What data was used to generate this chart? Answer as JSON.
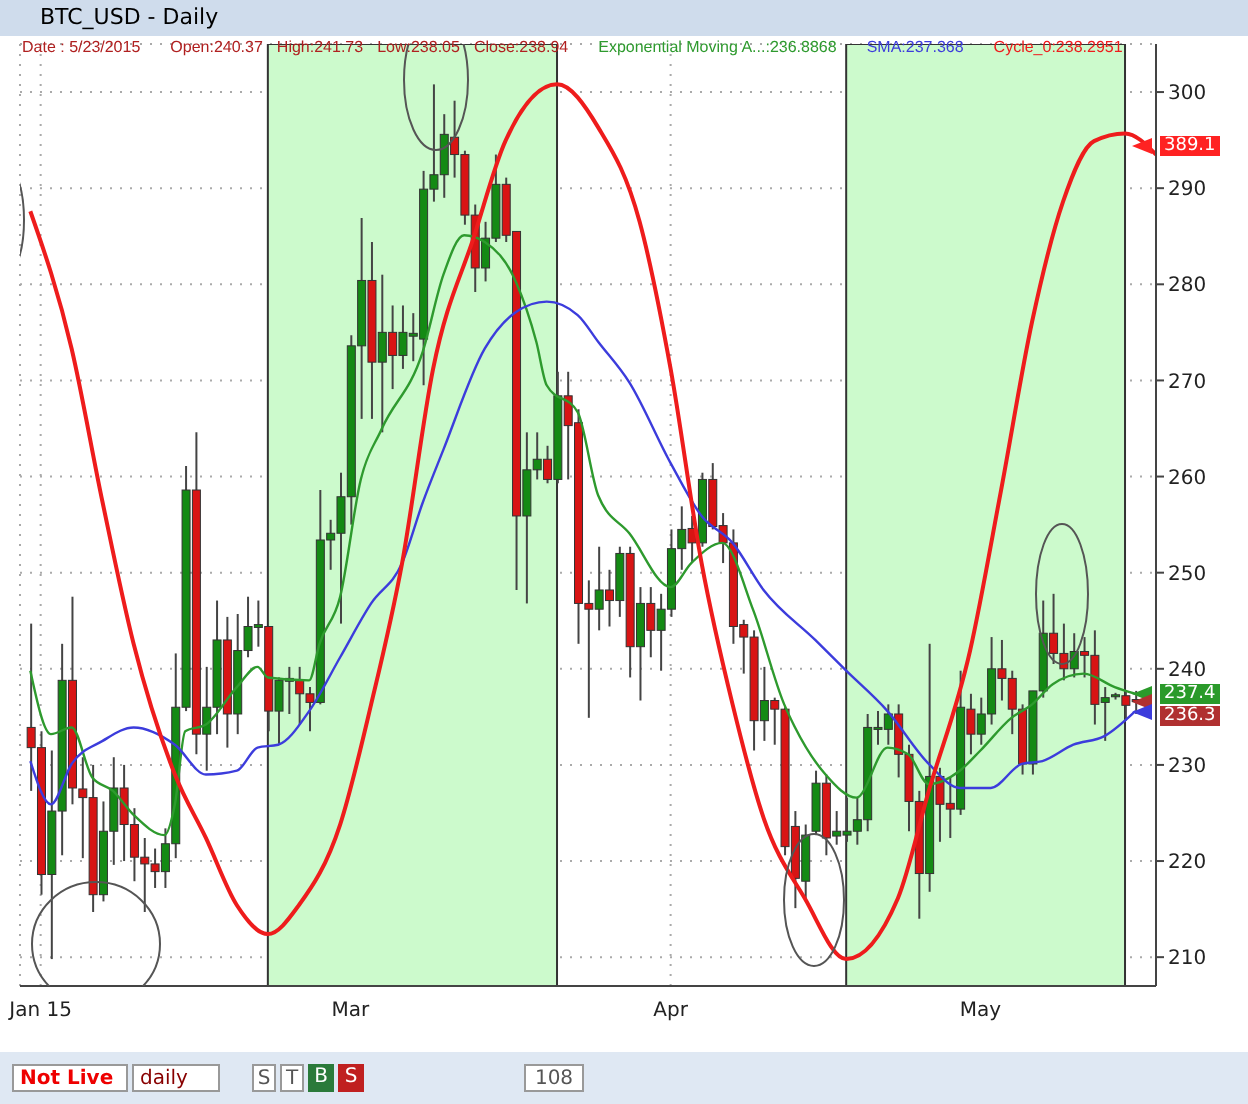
{
  "chart_data": {
    "type": "candlestick",
    "title": "BTC_USD - Daily",
    "annotations": [
      "Date : 5/23/2015",
      "Open:240.37",
      "High:241.73",
      "Low:238.05",
      "Close:238.94",
      "Not Live",
      "daily",
      "S",
      "T",
      "B",
      "S",
      "108",
      {
        "text": "389.1",
        "y": 294.4
      },
      {
        "text": "237.4",
        "y": 237.4
      },
      "236.3"
    ],
    "x": [
      "2015-01-29",
      "2015-01-30",
      "2015-01-31",
      "2015-02-01",
      "2015-02-02",
      "2015-02-03",
      "2015-02-04",
      "2015-02-05",
      "2015-02-06",
      "2015-02-07",
      "2015-02-08",
      "2015-02-09",
      "2015-02-10",
      "2015-02-11",
      "2015-02-12",
      "2015-02-13",
      "2015-02-14",
      "2015-02-15",
      "2015-02-16",
      "2015-02-17",
      "2015-02-18",
      "2015-02-19",
      "2015-02-20",
      "2015-02-21",
      "2015-02-22",
      "2015-02-23",
      "2015-02-24",
      "2015-02-25",
      "2015-02-26",
      "2015-02-27",
      "2015-02-28",
      "2015-03-01",
      "2015-03-02",
      "2015-03-03",
      "2015-03-04",
      "2015-03-05",
      "2015-03-06",
      "2015-03-07",
      "2015-03-08",
      "2015-03-09",
      "2015-03-10",
      "2015-03-11",
      "2015-03-12",
      "2015-03-13",
      "2015-03-14",
      "2015-03-15",
      "2015-03-16",
      "2015-03-17",
      "2015-03-18",
      "2015-03-19",
      "2015-03-20",
      "2015-03-21",
      "2015-03-22",
      "2015-03-23",
      "2015-03-24",
      "2015-03-25",
      "2015-03-26",
      "2015-03-27",
      "2015-03-28",
      "2015-03-29",
      "2015-03-30",
      "2015-03-31",
      "2015-04-01",
      "2015-04-02",
      "2015-04-03",
      "2015-04-04",
      "2015-04-05",
      "2015-04-06",
      "2015-04-07",
      "2015-04-08",
      "2015-04-09",
      "2015-04-10",
      "2015-04-11",
      "2015-04-12",
      "2015-04-13",
      "2015-04-14",
      "2015-04-15",
      "2015-04-16",
      "2015-04-17",
      "2015-04-18",
      "2015-04-19",
      "2015-04-20",
      "2015-04-21",
      "2015-04-22",
      "2015-04-23",
      "2015-04-24",
      "2015-04-25",
      "2015-04-26",
      "2015-04-27",
      "2015-04-28",
      "2015-04-29",
      "2015-04-30",
      "2015-05-01",
      "2015-05-02",
      "2015-05-03",
      "2015-05-04",
      "2015-05-05",
      "2015-05-06",
      "2015-05-07",
      "2015-05-08",
      "2015-05-09",
      "2015-05-10",
      "2015-05-11",
      "2015-05-12",
      "2015-05-13",
      "2015-05-14",
      "2015-05-15",
      "2015-05-16"
    ],
    "ohlc": [
      [
        233.9,
        244.7,
        227.3,
        231.8
      ],
      [
        231.8,
        233.5,
        216.5,
        218.6
      ],
      [
        218.6,
        231.5,
        209.8,
        225.2
      ],
      [
        225.2,
        242.6,
        220.6,
        238.8
      ],
      [
        238.8,
        247.5,
        225.9,
        227.6
      ],
      [
        227.5,
        230.8,
        220.3,
        226.6
      ],
      [
        226.6,
        230,
        214.7,
        216.5
      ],
      [
        216.5,
        226.2,
        215.8,
        223.1
      ],
      [
        223.1,
        230.8,
        219.6,
        227.6
      ],
      [
        227.6,
        230,
        220,
        223.8
      ],
      [
        223.8,
        225.5,
        217.9,
        220.4
      ],
      [
        220.4,
        222.4,
        214.7,
        219.7
      ],
      [
        219.7,
        221.3,
        217.2,
        218.9
      ],
      [
        218.9,
        223.4,
        217.2,
        221.8
      ],
      [
        221.8,
        241.6,
        220.3,
        236
      ],
      [
        236,
        261.1,
        235.6,
        258.6
      ],
      [
        258.6,
        264.6,
        231.1,
        233.2
      ],
      [
        233.2,
        240.2,
        229.4,
        236
      ],
      [
        236,
        247.1,
        233.2,
        243
      ],
      [
        243,
        245.4,
        231.8,
        235.3
      ],
      [
        235.3,
        245.7,
        233.2,
        241.9
      ],
      [
        241.9,
        247.5,
        241.2,
        244.4
      ],
      [
        244.3,
        247.1,
        242.3,
        244.6
      ],
      [
        244.4,
        244.4,
        233.5,
        235.6
      ],
      [
        235.6,
        239.1,
        232.2,
        238.8
      ],
      [
        238.7,
        240.2,
        235.3,
        239
      ],
      [
        238.8,
        240.2,
        234.2,
        237.4
      ],
      [
        237.4,
        238.1,
        233.5,
        236.5
      ],
      [
        236.5,
        258.6,
        236.3,
        253.4
      ],
      [
        253.4,
        255.5,
        250.3,
        254.1
      ],
      [
        254.1,
        260.4,
        244.7,
        257.9
      ],
      [
        257.9,
        274.7,
        255,
        273.6
      ],
      [
        273.6,
        286.9,
        266,
        280.4
      ],
      [
        280.4,
        284.4,
        266,
        271.9
      ],
      [
        271.9,
        281,
        264.6,
        275
      ],
      [
        275,
        277.8,
        269.1,
        272.6
      ],
      [
        272.6,
        277.8,
        271.2,
        275
      ],
      [
        274.6,
        277,
        272,
        274.9
      ],
      [
        274.3,
        291.8,
        269.5,
        289.9
      ],
      [
        289.9,
        300.8,
        288.6,
        291.4
      ],
      [
        291.4,
        297.7,
        289,
        295.6
      ],
      [
        295.3,
        299.1,
        291.1,
        293.5
      ],
      [
        293.5,
        293.9,
        286.2,
        287.2
      ],
      [
        287.2,
        288.3,
        279.2,
        281.7
      ],
      [
        281.7,
        286.5,
        280.3,
        284.8
      ],
      [
        284.8,
        293.5,
        284.4,
        290.4
      ],
      [
        290.4,
        291.1,
        284.4,
        285.1
      ],
      [
        285.5,
        285.5,
        248.2,
        255.9
      ],
      [
        255.9,
        264.6,
        246.8,
        260.7
      ],
      [
        260.7,
        264.6,
        259.7,
        261.8
      ],
      [
        261.8,
        263.2,
        259.3,
        259.7
      ],
      [
        259.7,
        270.9,
        259.3,
        268.4
      ],
      [
        268.4,
        270.9,
        259.7,
        265.3
      ],
      [
        265.6,
        267,
        242.6,
        246.8
      ],
      [
        246.8,
        249.2,
        234.9,
        246.2
      ],
      [
        246.2,
        252.7,
        244,
        248.2
      ],
      [
        248.2,
        250.3,
        244.4,
        247.1
      ],
      [
        247.1,
        252.7,
        245.4,
        252
      ],
      [
        252,
        252.7,
        239.1,
        242.3
      ],
      [
        242.3,
        248.5,
        236.7,
        246.8
      ],
      [
        246.8,
        248.5,
        241.2,
        244
      ],
      [
        244,
        247.8,
        239.8,
        246.2
      ],
      [
        246.2,
        254.5,
        245.4,
        252.5
      ],
      [
        252.5,
        256.9,
        250.3,
        254.5
      ],
      [
        254.6,
        255.9,
        251,
        253.1
      ],
      [
        253.1,
        260.4,
        252.7,
        259.7
      ],
      [
        259.7,
        261.4,
        254.5,
        254.8
      ],
      [
        254.9,
        256.2,
        251,
        253.1
      ],
      [
        253.1,
        254.5,
        242.6,
        244.4
      ],
      [
        244.6,
        245.1,
        239.5,
        243.3
      ],
      [
        243.3,
        244,
        231.5,
        234.6
      ],
      [
        234.6,
        240.2,
        232.5,
        236.7
      ],
      [
        236.7,
        237,
        232.1,
        235.8
      ],
      [
        235.8,
        236,
        220.6,
        221.5
      ],
      [
        223.6,
        225.2,
        215.1,
        218.2
      ],
      [
        217.9,
        223.8,
        216.1,
        222.7
      ],
      [
        223.1,
        229.4,
        222.7,
        228.1
      ],
      [
        228.1,
        229,
        220.6,
        222.4
      ],
      [
        222.6,
        225.2,
        221.7,
        223.1
      ],
      [
        222.7,
        226.6,
        222,
        223.1
      ],
      [
        223.1,
        226.6,
        221.7,
        224.3
      ],
      [
        224.3,
        235.3,
        223.1,
        233.9
      ],
      [
        233.7,
        235.6,
        232.1,
        233.9
      ],
      [
        233.7,
        236.3,
        232.1,
        235.3
      ],
      [
        235.3,
        236.3,
        228.7,
        231.1
      ],
      [
        231.1,
        232.1,
        223.1,
        226.2
      ],
      [
        226.2,
        227.3,
        214,
        218.7
      ],
      [
        218.7,
        242.6,
        216.8,
        228.8
      ],
      [
        228.8,
        229.7,
        222,
        225.9
      ],
      [
        226,
        228.7,
        222.4,
        225.4
      ],
      [
        225.4,
        239.8,
        224.8,
        236
      ],
      [
        235.8,
        237.4,
        231.1,
        233.2
      ],
      [
        233.2,
        237,
        232.1,
        235.3
      ],
      [
        235.3,
        243.3,
        234.2,
        240
      ],
      [
        240,
        243,
        236.7,
        239
      ],
      [
        239,
        239.8,
        233.2,
        235.8
      ],
      [
        235.8,
        236.3,
        229,
        230.1
      ],
      [
        230.1,
        237.7,
        229,
        237.7
      ],
      [
        237.7,
        247.1,
        237,
        243.7
      ],
      [
        243.7,
        247.8,
        240.5,
        241.6
      ],
      [
        241.6,
        244.7,
        238.8,
        240
      ],
      [
        240,
        243.7,
        239.1,
        241.8
      ],
      [
        241.8,
        243.3,
        239.1,
        241.4
      ],
      [
        241.4,
        244,
        234.2,
        236.3
      ],
      [
        236.5,
        238.1,
        232.5,
        237
      ],
      [
        237.1,
        237.5,
        236.8,
        237.3
      ],
      [
        237.2,
        237.7,
        234.6,
        236.2
      ],
      [
        236.8,
        237.7,
        235.3,
        236.6
      ]
    ],
    "series": [
      {
        "type": "line",
        "name": "Exponential Moving A...:236.8868",
        "color": "#2e9a2e",
        "x": [
          "2015-01-29",
          "2015-01-31",
          "2015-02-02",
          "2015-02-04",
          "2015-02-06",
          "2015-02-08",
          "2015-02-11",
          "2015-02-12",
          "2015-02-13",
          "2015-02-15",
          "2015-02-18",
          "2015-02-20",
          "2015-02-21",
          "2015-02-25",
          "2015-02-26",
          "2015-02-28",
          "2015-03-02",
          "2015-03-04",
          "2015-03-08",
          "2015-03-10",
          "2015-03-12",
          "2015-03-14",
          "2015-03-17",
          "2015-03-19",
          "2015-03-20",
          "2015-03-23",
          "2015-03-25",
          "2015-03-28",
          "2015-04-01",
          "2015-04-03",
          "2015-04-06",
          "2015-04-09",
          "2015-04-12",
          "2015-04-13",
          "2015-04-16",
          "2015-04-19",
          "2015-04-22",
          "2015-04-24",
          "2015-04-26",
          "2015-04-29",
          "2015-05-01",
          "2015-05-04",
          "2015-05-06",
          "2015-05-08",
          "2015-05-11",
          "2015-05-14",
          "2015-05-16"
        ],
        "values": [
          239.8,
          233.2,
          233.9,
          228.7,
          227.3,
          224.8,
          222.7,
          225.9,
          233.5,
          234.2,
          238.1,
          240.2,
          239.1,
          238.8,
          242.6,
          247.5,
          259.7,
          264.9,
          273,
          281,
          285.1,
          284.4,
          280.3,
          274,
          269.5,
          266.7,
          258,
          254.1,
          248.5,
          251,
          253.1,
          246.1,
          236.3,
          234,
          229,
          226.6,
          231.8,
          231.1,
          228,
          229.4,
          231.5,
          234.9,
          236.3,
          238.4,
          239.5,
          238.1,
          237.4
        ]
      },
      {
        "type": "line",
        "name": "SMA:237.368",
        "color": "#3c3cdc",
        "x": [
          "2015-01-29",
          "2015-01-31",
          "2015-02-02",
          "2015-02-05",
          "2015-02-08",
          "2015-02-12",
          "2015-02-15",
          "2015-02-18",
          "2015-02-20",
          "2015-02-22",
          "2015-02-25",
          "2015-02-28",
          "2015-03-03",
          "2015-03-06",
          "2015-03-08",
          "2015-03-10",
          "2015-03-14",
          "2015-03-17",
          "2015-03-20",
          "2015-03-23",
          "2015-03-25",
          "2015-03-28",
          "2015-04-01",
          "2015-04-04",
          "2015-04-07",
          "2015-04-10",
          "2015-04-15",
          "2015-04-18",
          "2015-04-22",
          "2015-04-26",
          "2015-04-29",
          "2015-05-02",
          "2015-05-05",
          "2015-05-07",
          "2015-05-10",
          "2015-05-13",
          "2015-05-16"
        ],
        "values": [
          230.4,
          225.9,
          230.1,
          232.5,
          233.9,
          232.1,
          229,
          229.4,
          231.8,
          232.1,
          235.6,
          241.2,
          246.8,
          251,
          257.3,
          262.8,
          273.3,
          277.1,
          278.2,
          276.8,
          274,
          269.8,
          261.4,
          255.9,
          253.1,
          248.2,
          243,
          239.8,
          235.6,
          230.1,
          227.6,
          227.6,
          230.1,
          230.4,
          232.1,
          233,
          235.6
        ]
      },
      {
        "type": "line",
        "name": "Cycle_0:238.2951",
        "color": "#ee1c1c",
        "x": [
          "2015-01-29",
          "2015-02-02",
          "2015-02-05",
          "2015-02-08",
          "2015-02-12",
          "2015-02-15",
          "2015-02-18",
          "2015-02-21",
          "2015-02-24",
          "2015-02-28",
          "2015-03-03",
          "2015-03-06",
          "2015-03-09",
          "2015-03-13",
          "2015-03-16",
          "2015-03-21",
          "2015-03-25",
          "2015-03-29",
          "2015-04-01",
          "2015-04-04",
          "2015-04-07",
          "2015-04-10",
          "2015-04-14",
          "2015-04-18",
          "2015-04-23",
          "2015-04-26",
          "2015-04-30",
          "2015-05-03",
          "2015-05-06",
          "2015-05-09",
          "2015-05-12",
          "2015-05-15",
          "2015-05-18"
        ],
        "values": [
          287.6,
          273.3,
          257.3,
          242.6,
          229,
          222.4,
          215.4,
          212.4,
          215.4,
          223.8,
          236.3,
          251,
          271.2,
          285.1,
          294.9,
          300.8,
          296.3,
          286.5,
          271.2,
          251,
          236.3,
          224.5,
          216.1,
          209.8,
          216.1,
          227.3,
          241.9,
          258.6,
          276.1,
          288.6,
          294.9,
          295.7,
          293.5
        ]
      }
    ],
    "bands": [
      {
        "axis": "x",
        "from": "2015-02-21",
        "to": "2015-03-21",
        "color": "#ccfacc"
      },
      {
        "axis": "x",
        "from": "2015-04-18",
        "to": "2015-05-15",
        "color": "#ccfacc"
      }
    ],
    "xlim": [
      "2015-01-28",
      "2015-05-18"
    ],
    "xticks": [
      {
        "value": "2015-01-30",
        "label": "Jan 15"
      },
      {
        "value": "2015-03-01",
        "label": "Mar"
      },
      {
        "value": "2015-04-01",
        "label": "Apr"
      },
      {
        "value": "2015-05-01",
        "label": "May"
      }
    ],
    "ylim": [
      207,
      305
    ],
    "yticks": [
      210,
      220,
      230,
      240,
      250,
      260,
      270,
      280,
      290,
      300
    ],
    "grid": true,
    "legend": "top",
    "marker": "none",
    "line_style": "solid"
  }
}
